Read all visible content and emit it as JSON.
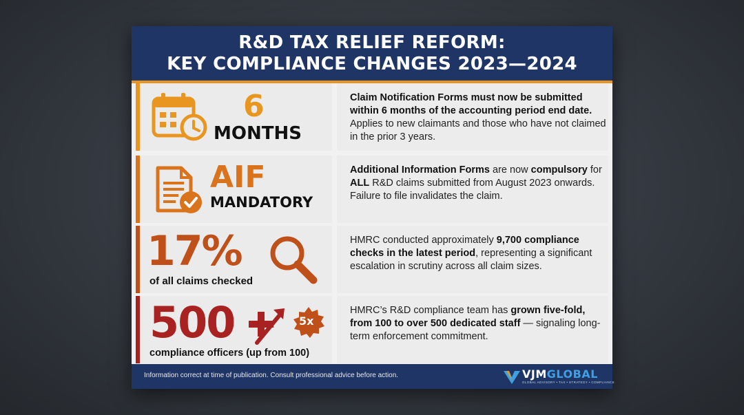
{
  "header": {
    "title_line1": "R&D TAX RELIEF REFORM:",
    "title_line2": "KEY COMPLIANCE CHANGES 2023—2024"
  },
  "rows": [
    {
      "stat_big": "6",
      "stat_small": "MONTHS",
      "icon": "calendar-clock-icon",
      "color": "#e8961f",
      "text_bold": "Claim Notification Forms must now be submitted within 6 months of the accounting period end date.",
      "text_rest": " Applies to new claimants and those who have not claimed in the prior 3 years."
    },
    {
      "stat_big": "AIF",
      "stat_small": "MANDATORY",
      "icon": "document-check-icon",
      "color": "#d9741c",
      "text_a": "Additional Information Forms",
      "text_b": " are now ",
      "text_c": "compulsory",
      "text_d": " for ",
      "text_e": "ALL",
      "text_f": " R&D claims submitted from August 2023 onwards. Failure to file invalidates the claim."
    },
    {
      "stat_big": "17%",
      "stat_small": "of all claims checked",
      "icon": "magnifier-icon",
      "color": "#c0501a",
      "text_a": "HMRC conducted approximately ",
      "text_b": "9,700 compliance checks in the latest period",
      "text_c": ", representing a significant escalation in scrutiny across all claim sizes."
    },
    {
      "stat_big": "500",
      "stat_small": "compliance officers (up from 100)",
      "icon": "growth-arrow-icon",
      "badge": "5x",
      "color": "#a82222",
      "text_a": "HMRC’s R&D compliance team has ",
      "text_b": "grown five-fold, from 100 to over 500 dedicated staff",
      "text_c": " — signaling long-term enforcement commitment."
    }
  ],
  "footer": {
    "note": "Information correct at time of publication. Consult professional advice before action.",
    "logo_a": "VJM",
    "logo_b": "GLOBAL",
    "logo_tagline": "GLOBAL ADVISORY • TAX • STRATEGY • COMPLIANCE"
  }
}
